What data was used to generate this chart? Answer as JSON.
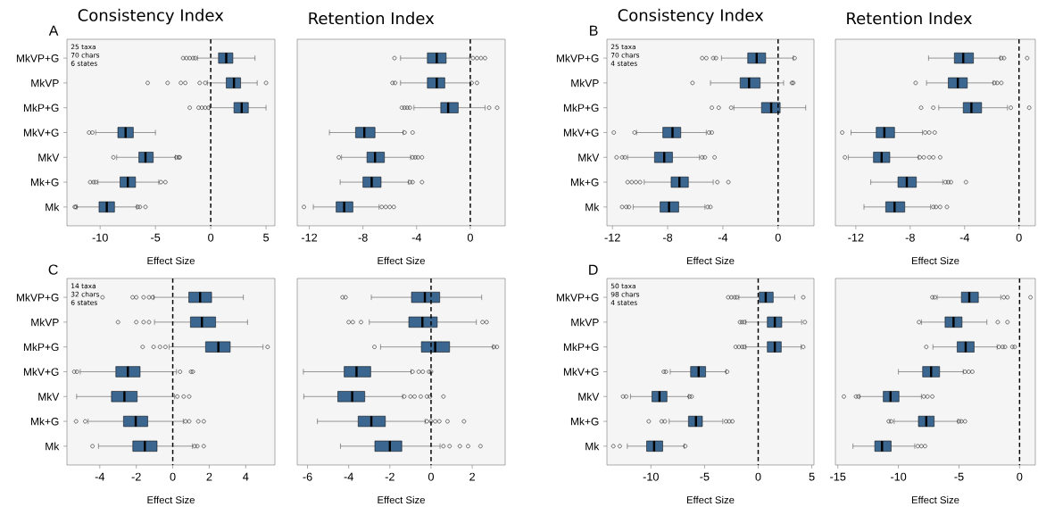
{
  "chart_data": [
    {
      "type": "box",
      "orientation": "horizontal",
      "title": "Consistency Index",
      "xlabel": "Effect Size",
      "annotations": [
        "A",
        "25 taxa",
        "70 chars",
        "6 states"
      ],
      "marker": "circle",
      "categories": [
        "MkVP+G",
        "MkVP",
        "MkP+G",
        "MkV+G",
        "MkV",
        "Mk+G",
        "Mk"
      ],
      "xlim": [
        -13,
        5.8
      ],
      "xticks": [
        -10,
        -5,
        0,
        5
      ],
      "ref_lines": [
        {
          "axis": "x",
          "value": 0,
          "line_style": "dashed"
        }
      ],
      "series": [
        {
          "color": "#3b6690",
          "boxes": [
            {
              "low": -1.2,
              "q1": 0.7,
              "median": 1.4,
              "q3": 2.0,
              "high": 4.0,
              "outliers": [
                -2.5,
                -2.2,
                -1.9,
                -1.6,
                -1.4
              ]
            },
            {
              "low": -0.3,
              "q1": 1.4,
              "median": 2.1,
              "q3": 2.7,
              "high": 4.2,
              "outliers": [
                -5.7,
                -3.9,
                -2.7,
                -2.3,
                -1.0,
                -0.5,
                5.0
              ]
            },
            {
              "low": -0.1,
              "q1": 2.1,
              "median": 2.8,
              "q3": 3.4,
              "high": 5.0,
              "outliers": [
                -1.9,
                -1.1,
                -0.8,
                -0.5,
                -0.2
              ]
            },
            {
              "low": -10.4,
              "q1": -8.4,
              "median": -7.7,
              "q3": -7.0,
              "high": -5.0,
              "outliers": [
                -11.0,
                -10.7
              ]
            },
            {
              "low": -8.5,
              "q1": -6.5,
              "median": -5.9,
              "q3": -5.2,
              "high": -3.2,
              "outliers": [
                -8.8,
                -3.1,
                -2.9,
                -2.8
              ]
            },
            {
              "low": -10.2,
              "q1": -8.2,
              "median": -7.5,
              "q3": -6.8,
              "high": -4.7,
              "outliers": [
                -10.9,
                -10.6,
                -10.4,
                -4.5,
                -4.1
              ]
            },
            {
              "low": -12.1,
              "q1": -10.1,
              "median": -9.4,
              "q3": -8.7,
              "high": -6.7,
              "outliers": [
                -12.3,
                -12.2,
                -6.6,
                -6.4,
                -5.9
              ]
            }
          ]
        }
      ]
    },
    {
      "type": "box",
      "orientation": "horizontal",
      "title": "Retention Index",
      "xlabel": "Effect Size",
      "marker": "circle",
      "tick_labels": "x",
      "categories": [
        null,
        null,
        null,
        null,
        null,
        null,
        null
      ],
      "xlim": [
        -12.9,
        2.6
      ],
      "xticks": [
        -12,
        -8,
        -4,
        0
      ],
      "ref_lines": [
        {
          "axis": "x",
          "value": 0,
          "line_style": "dashed"
        }
      ],
      "series": [
        {
          "color": "#3b6690",
          "boxes": [
            {
              "low": -5.2,
              "q1": -3.2,
              "median": -2.5,
              "q3": -1.8,
              "high": -0.05,
              "outliers": [
                -5.65,
                0.2,
                0.5,
                0.8,
                1.1
              ]
            },
            {
              "low": -5.2,
              "q1": -3.2,
              "median": -2.5,
              "q3": -1.9,
              "high": 0,
              "outliers": [
                -5.8,
                -5.6,
                0.1,
                0.5
              ]
            },
            {
              "low": -4.2,
              "q1": -2.2,
              "median": -1.65,
              "q3": -0.9,
              "high": 1.1,
              "outliers": [
                -5.1,
                -4.9,
                -4.7,
                -4.5,
                1.4,
                2.0
              ]
            },
            {
              "low": -10.5,
              "q1": -8.55,
              "median": -7.9,
              "q3": -7.1,
              "high": -5.0,
              "outliers": [
                -4.9,
                -4.3
              ]
            },
            {
              "low": -9.6,
              "q1": -7.7,
              "median": -7.1,
              "q3": -6.4,
              "high": -4.45,
              "outliers": [
                -9.8,
                -4.3,
                -4.1,
                -3.9,
                -3.6
              ]
            },
            {
              "low": -9.7,
              "q1": -8.0,
              "median": -7.35,
              "q3": -6.65,
              "high": -4.6,
              "outliers": [
                -4.5,
                -4.3,
                -3.6
              ]
            },
            {
              "low": -11.7,
              "q1": -10.0,
              "median": -9.4,
              "q3": -8.75,
              "high": -6.8,
              "outliers": [
                -12.4,
                -6.6,
                -6.3,
                -6.0,
                -5.7
              ]
            }
          ]
        }
      ]
    },
    {
      "type": "box",
      "orientation": "horizontal",
      "title": "Consistency Index",
      "xlabel": "Effect Size",
      "annotations": [
        "B",
        "25 taxa",
        "70 chars",
        "4 states"
      ],
      "marker": "circle",
      "categories": [
        "MkVP+G",
        "MkVP",
        "MkP+G",
        "MkV+G",
        "MkV",
        "Mk+G",
        "Mk"
      ],
      "xlim": [
        -12.4,
        2.6
      ],
      "xticks": [
        -12,
        -8,
        -4,
        0
      ],
      "ref_lines": [
        {
          "axis": "x",
          "value": 0,
          "line_style": "dashed"
        }
      ],
      "series": [
        {
          "color": "#3b6690",
          "boxes": [
            {
              "low": -4.1,
              "q1": -2.2,
              "median": -1.55,
              "q3": -0.9,
              "high": 1.1,
              "outliers": [
                -5.5,
                -5.2,
                -4.7,
                -4.5,
                1.2
              ]
            },
            {
              "low": -4.9,
              "q1": -2.75,
              "median": -2.1,
              "q3": -1.3,
              "high": 0.4,
              "outliers": [
                -6.2,
                1.0,
                1.1
              ]
            },
            {
              "low": -3.2,
              "q1": -1.2,
              "median": -0.5,
              "q3": 0.15,
              "high": 2.0,
              "outliers": [
                -4.8,
                -4.3,
                -3.4
              ]
            },
            {
              "low": -10.25,
              "q1": -8.35,
              "median": -7.65,
              "q3": -7.05,
              "high": -5.2,
              "outliers": [
                -11.9,
                -10.4,
                -5.0,
                -4.8
              ]
            },
            {
              "low": -10.9,
              "q1": -8.95,
              "median": -8.25,
              "q3": -7.65,
              "high": -5.7,
              "outliers": [
                -11.7,
                -11.3,
                -11.1,
                -5.5,
                -5.3,
                -4.6
              ]
            },
            {
              "low": -9.7,
              "q1": -7.75,
              "median": -7.15,
              "q3": -6.5,
              "high": -4.7,
              "outliers": [
                -10.9,
                -10.6,
                -10.3,
                -10.0,
                -4.4,
                -3.6
              ]
            },
            {
              "low": -10.5,
              "q1": -8.55,
              "median": -7.9,
              "q3": -7.2,
              "high": -5.3,
              "outliers": [
                -11.3,
                -11.0,
                -10.8,
                -5.1,
                -4.9
              ]
            }
          ]
        }
      ]
    },
    {
      "type": "box",
      "orientation": "horizontal",
      "title": "Retention Index",
      "xlabel": "Effect Size",
      "marker": "circle",
      "tick_labels": "x",
      "categories": [
        null,
        null,
        null,
        null,
        null,
        null,
        null
      ],
      "xlim": [
        -13.5,
        1.2
      ],
      "xticks": [
        -12,
        -8,
        -4,
        0
      ],
      "ref_lines": [
        {
          "axis": "x",
          "value": 0,
          "line_style": "dashed"
        }
      ],
      "series": [
        {
          "color": "#3b6690",
          "boxes": [
            {
              "low": -6.65,
              "q1": -4.75,
              "median": -4.1,
              "q3": -3.35,
              "high": -1.4,
              "outliers": [
                -1.3,
                -1.1,
                0.6
              ]
            },
            {
              "low": -6.8,
              "q1": -5.2,
              "median": -4.5,
              "q3": -3.8,
              "high": -1.9,
              "outliers": [
                -7.6,
                -1.8,
                -1.6,
                -1.3
              ]
            },
            {
              "low": -5.9,
              "q1": -4.1,
              "median": -3.5,
              "q3": -2.75,
              "high": -0.85,
              "outliers": [
                -7.2,
                -6.3,
                -0.6,
                0.75
              ]
            },
            {
              "low": -12.35,
              "q1": -10.5,
              "median": -9.9,
              "q3": -9.15,
              "high": -7.1,
              "outliers": [
                -13.0,
                -6.9,
                -6.6,
                -6.2
              ]
            },
            {
              "low": -12.55,
              "q1": -10.7,
              "median": -10.1,
              "q3": -9.5,
              "high": -7.4,
              "outliers": [
                -12.8,
                -7.3,
                -7.0,
                -6.6,
                -6.3,
                -5.8
              ]
            },
            {
              "low": -10.9,
              "q1": -8.9,
              "median": -8.25,
              "q3": -7.55,
              "high": -5.6,
              "outliers": [
                -5.4,
                -5.2,
                -5.0,
                -3.9
              ]
            },
            {
              "low": -11.4,
              "q1": -9.8,
              "median": -9.15,
              "q3": -8.4,
              "high": -6.5,
              "outliers": [
                -6.3,
                -6.1,
                -5.8,
                -5.3
              ]
            }
          ]
        }
      ]
    },
    {
      "type": "box",
      "orientation": "horizontal",
      "xlabel": "Effect Size",
      "annotations": [
        "C",
        "14 taxa",
        "32 chars",
        "6 states"
      ],
      "marker": "circle",
      "categories": [
        "MkVP+G",
        "MkVP",
        "MkP+G",
        "MkV+G",
        "MkV",
        "Mk+G",
        "Mk"
      ],
      "xlim": [
        -5.8,
        5.6
      ],
      "xticks": [
        -4,
        -2,
        0,
        2,
        4
      ],
      "ref_lines": [
        {
          "axis": "x",
          "value": 0,
          "line_style": "dashed"
        }
      ],
      "series": [
        {
          "color": "#3b6690",
          "boxes": [
            {
              "low": -1.04,
              "q1": 0.88,
              "median": 1.5,
              "q3": 2.13,
              "high": 3.87,
              "outliers": [
                -3.85,
                -2.2,
                -2.0,
                -1.6,
                -1.3,
                -1.1
              ]
            },
            {
              "low": -1.0,
              "q1": 0.97,
              "median": 1.6,
              "q3": 2.35,
              "high": 4.1,
              "outliers": [
                -3.0,
                -2.0,
                -1.6,
                -1.3
              ]
            },
            {
              "low": -0.2,
              "q1": 1.8,
              "median": 2.5,
              "q3": 3.15,
              "high": 4.95,
              "outliers": [
                -1.65,
                -1.05,
                -0.7,
                -0.4,
                5.2
              ]
            },
            {
              "low": -5.07,
              "q1": -3.12,
              "median": -2.46,
              "q3": -1.79,
              "high": 0.2,
              "outliers": [
                -5.4,
                -5.25,
                0.4,
                1.0,
                1.1
              ]
            },
            {
              "low": -5.27,
              "q1": -3.36,
              "median": -2.65,
              "q3": -1.95,
              "high": 0.1,
              "outliers": [
                0.25,
                0.6,
                0.9
              ]
            },
            {
              "low": -4.64,
              "q1": -2.7,
              "median": -2.03,
              "q3": -1.37,
              "high": 0.58,
              "outliers": [
                -5.3,
                -4.8,
                0.7,
                0.9,
                1.4,
                1.7
              ]
            },
            {
              "low": -4.07,
              "q1": -2.19,
              "median": -1.53,
              "q3": -0.86,
              "high": 1.08,
              "outliers": [
                -4.4,
                1.2,
                1.35,
                1.7
              ]
            }
          ]
        }
      ]
    },
    {
      "type": "box",
      "orientation": "horizontal",
      "xlabel": "Effect Size",
      "marker": "circle",
      "tick_labels": "x",
      "categories": [
        null,
        null,
        null,
        null,
        null,
        null,
        null
      ],
      "xlim": [
        -6.5,
        3.6
      ],
      "xticks": [
        -6,
        -4,
        -2,
        0,
        2
      ],
      "ref_lines": [
        {
          "axis": "x",
          "value": 0,
          "line_style": "dashed"
        }
      ],
      "series": [
        {
          "color": "#3b6690",
          "boxes": [
            {
              "low": -2.9,
              "q1": -0.95,
              "median": -0.3,
              "q3": 0.42,
              "high": 2.46,
              "outliers": [
                -4.3,
                -4.15
              ]
            },
            {
              "low": -3.0,
              "q1": -1.08,
              "median": -0.42,
              "q3": 0.3,
              "high": 2.2,
              "outliers": [
                -4.0,
                -3.8,
                -3.4,
                2.5,
                2.7
              ]
            },
            {
              "low": -2.45,
              "q1": -0.47,
              "median": 0.2,
              "q3": 0.9,
              "high": 3.0,
              "outliers": [
                -2.75,
                3.05,
                3.2
              ]
            },
            {
              "low": -6.2,
              "q1": -4.22,
              "median": -3.62,
              "q3": -2.93,
              "high": -0.97,
              "outliers": [
                -0.9,
                -0.6,
                -0.4,
                -0.1,
                0.0
              ]
            },
            {
              "low": -6.18,
              "q1": -4.53,
              "median": -3.83,
              "q3": -3.22,
              "high": -1.38,
              "outliers": [
                -1.3,
                -1.0,
                -0.8,
                -0.5,
                -0.2,
                -0.05,
                0.6
              ]
            },
            {
              "low": -5.52,
              "q1": -3.54,
              "median": -2.9,
              "q3": -2.22,
              "high": -0.29,
              "outliers": [
                -0.2,
                0.0,
                0.2,
                0.4,
                0.8,
                1.6
              ]
            },
            {
              "low": -4.4,
              "q1": -2.73,
              "median": -2.0,
              "q3": -1.42,
              "high": 0.44,
              "outliers": [
                0.6,
                0.9,
                1.4,
                1.8,
                2.4
              ]
            }
          ]
        }
      ]
    },
    {
      "type": "box",
      "orientation": "horizontal",
      "xlabel": "Effect Size",
      "annotations": [
        "D",
        "50 taxa",
        "98 chars",
        "4 states"
      ],
      "marker": "circle",
      "categories": [
        "MkVP+G",
        "MkVP",
        "MkP+G",
        "MkV+G",
        "MkV",
        "Mk+G",
        "Mk"
      ],
      "xlim": [
        -14.1,
        5.2
      ],
      "xticks": [
        -10,
        -5,
        0,
        5
      ],
      "ref_lines": [
        {
          "axis": "x",
          "value": 0,
          "line_style": "dashed"
        }
      ],
      "series": [
        {
          "color": "#3b6690",
          "boxes": [
            {
              "low": -1.8,
              "q1": 0.1,
              "median": 0.7,
              "q3": 1.4,
              "high": 3.4,
              "outliers": [
                -2.8,
                -2.5,
                -2.2,
                -2.0,
                4.2
              ]
            },
            {
              "low": -1.15,
              "q1": 0.85,
              "median": 1.55,
              "q3": 2.2,
              "high": 4.05,
              "outliers": [
                -1.7,
                -1.5,
                -1.3,
                4.35
              ]
            },
            {
              "low": -1.15,
              "q1": 0.85,
              "median": 1.55,
              "q3": 2.15,
              "high": 4.0,
              "outliers": [
                -2.1,
                -1.8,
                -1.5,
                -1.3,
                4.2
              ]
            },
            {
              "low": -8.2,
              "q1": -6.3,
              "median": -5.55,
              "q3": -4.9,
              "high": -3.0,
              "outliers": [
                -8.8,
                -8.6,
                -2.9
              ]
            },
            {
              "low": -11.9,
              "q1": -9.9,
              "median": -9.2,
              "q3": -8.5,
              "high": -6.5,
              "outliers": [
                -12.6,
                -12.3,
                -6.4,
                -6.2
              ]
            },
            {
              "low": -8.3,
              "q1": -6.5,
              "median": -5.8,
              "q3": -5.2,
              "high": -3.3,
              "outliers": [
                -10.2,
                -9.0,
                -8.7,
                -3.0,
                -2.7,
                -2.4
              ]
            },
            {
              "low": -12.2,
              "q1": -10.4,
              "median": -9.7,
              "q3": -8.9,
              "high": -6.9,
              "outliers": [
                -13.5,
                -12.9,
                -6.8
              ]
            }
          ]
        }
      ]
    },
    {
      "type": "box",
      "orientation": "horizontal",
      "xlabel": "Effect Size",
      "marker": "circle",
      "tick_labels": "x",
      "categories": [
        null,
        null,
        null,
        null,
        null,
        null,
        null
      ],
      "xlim": [
        -15.2,
        1.3
      ],
      "xticks": [
        -15,
        -10,
        -5,
        0
      ],
      "ref_lines": [
        {
          "axis": "x",
          "value": 0,
          "line_style": "dashed"
        }
      ],
      "series": [
        {
          "color": "#3b6690",
          "boxes": [
            {
              "low": -6.8,
              "q1": -4.8,
              "median": -4.15,
              "q3": -3.4,
              "high": -1.55,
              "outliers": [
                -7.2,
                -7.0,
                -1.3,
                -1.0,
                0.9
              ]
            },
            {
              "low": -8.1,
              "q1": -6.15,
              "median": -5.45,
              "q3": -4.75,
              "high": -2.7,
              "outliers": [
                -8.3,
                -1.8,
                -1.0
              ]
            },
            {
              "low": -7.15,
              "q1": -5.15,
              "median": -4.45,
              "q3": -3.75,
              "high": -1.85,
              "outliers": [
                -7.7,
                -1.7,
                -1.4,
                -1.2,
                -0.6,
                -0.4
              ]
            },
            {
              "low": -10.0,
              "q1": -8.0,
              "median": -7.3,
              "q3": -6.6,
              "high": -4.65,
              "outliers": [
                -4.5,
                -4.2,
                -3.9
              ]
            },
            {
              "low": -13.2,
              "q1": -11.25,
              "median": -10.65,
              "q3": -9.95,
              "high": -8.1,
              "outliers": [
                -14.5,
                -13.5,
                -13.3,
                -7.9,
                -7.6,
                -7.2
              ]
            },
            {
              "low": -10.35,
              "q1": -8.35,
              "median": -7.7,
              "q3": -7.05,
              "high": -5.1,
              "outliers": [
                -10.8,
                -10.6,
                -5.0,
                -4.8,
                -4.5
              ]
            },
            {
              "low": -13.75,
              "q1": -11.95,
              "median": -11.35,
              "q3": -10.6,
              "high": -8.65,
              "outliers": [
                -8.4,
                -8.1,
                -7.8
              ]
            }
          ]
        }
      ]
    }
  ]
}
